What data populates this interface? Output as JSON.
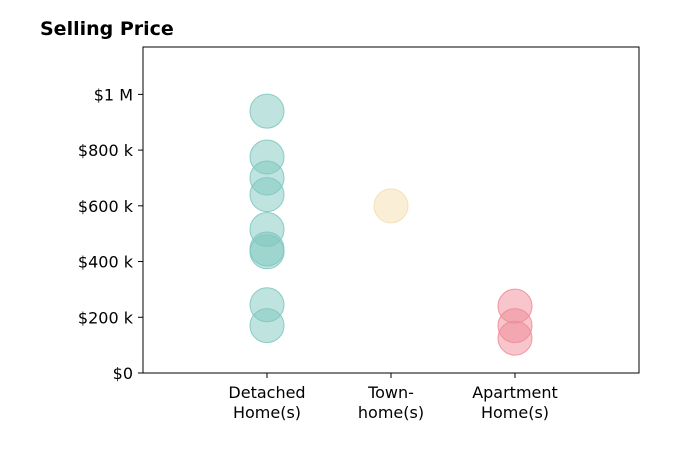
{
  "chart_data": {
    "type": "scatter",
    "title": "Selling Price",
    "xlabel": "",
    "ylabel": "",
    "categories": [
      {
        "line1": "Detached",
        "line2": "Home(s)"
      },
      {
        "line1": "Town-",
        "line2": "home(s)"
      },
      {
        "line1": "Apartment",
        "line2": "Home(s)"
      }
    ],
    "ylim": [
      0,
      1170000
    ],
    "xlim": [
      -1,
      3
    ],
    "yticks": [
      {
        "value": 0,
        "label": "$0"
      },
      {
        "value": 200000,
        "label": "$200 k"
      },
      {
        "value": 400000,
        "label": "$400 k"
      },
      {
        "value": 600000,
        "label": "$600 k"
      },
      {
        "value": 800000,
        "label": "$800 k"
      },
      {
        "value": 1000000,
        "label": "$1 M"
      }
    ],
    "grid": false,
    "legend": "none",
    "series": [
      {
        "category_index": 0,
        "color": "#7fc8bf",
        "values": [
          940000,
          775000,
          700000,
          640000,
          515000,
          445000,
          435000,
          245000,
          170000
        ]
      },
      {
        "category_index": 1,
        "color": "#f5deb0",
        "values": [
          600000
        ]
      },
      {
        "category_index": 2,
        "color": "#f08c97",
        "values": [
          240000,
          170000,
          125000
        ]
      }
    ]
  }
}
